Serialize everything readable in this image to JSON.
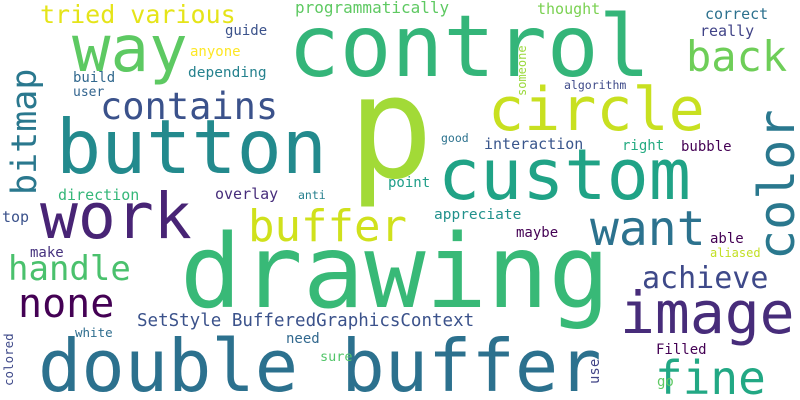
{
  "words": [
    {
      "text": "p",
      "color": "#a2da37"
    },
    {
      "text": "drawing",
      "color": "#38b977"
    },
    {
      "text": "control",
      "color": "#34b579"
    },
    {
      "text": "double buffer",
      "color": "#2c718e"
    },
    {
      "text": "custom",
      "color": "#20a386"
    },
    {
      "text": "button",
      "color": "#238a8d"
    },
    {
      "text": "work",
      "color": "#482475"
    },
    {
      "text": "way",
      "color": "#5dc962"
    },
    {
      "text": "circle",
      "color": "#c8e020"
    },
    {
      "text": "image",
      "color": "#472c7a"
    },
    {
      "text": "contains",
      "color": "#3b528b"
    },
    {
      "text": "color",
      "color": "#2a788e"
    },
    {
      "text": "buffer",
      "color": "#d0e11c"
    },
    {
      "text": "want",
      "color": "#2c728e"
    },
    {
      "text": "none",
      "color": "#440154"
    },
    {
      "text": "handle",
      "color": "#4ac16d"
    },
    {
      "text": "fine",
      "color": "#22a884"
    },
    {
      "text": "back",
      "color": "#6ece58"
    },
    {
      "text": "bitmap",
      "color": "#2a788e"
    },
    {
      "text": "achieve",
      "color": "#3e4989"
    },
    {
      "text": "tried various",
      "color": "#e5e419"
    },
    {
      "text": "SetStyle BufferedGraphicsContext",
      "color": "#3b528b"
    },
    {
      "text": "programmatically",
      "color": "#5ec962"
    },
    {
      "text": "thought",
      "color": "#7ad151"
    },
    {
      "text": "correct",
      "color": "#2c718e"
    },
    {
      "text": "really",
      "color": "#404387"
    },
    {
      "text": "guide",
      "color": "#3b528b"
    },
    {
      "text": "anyone",
      "color": "#fde725"
    },
    {
      "text": "depending",
      "color": "#26828e"
    },
    {
      "text": "build",
      "color": "#31688e"
    },
    {
      "text": "user",
      "color": "#32648e"
    },
    {
      "text": "someone",
      "color": "#9bd93c"
    },
    {
      "text": "algorithm",
      "color": "#3e4a89"
    },
    {
      "text": "good",
      "color": "#2c728e"
    },
    {
      "text": "interaction",
      "color": "#39568c"
    },
    {
      "text": "right",
      "color": "#25ab82"
    },
    {
      "text": "bubble",
      "color": "#440154"
    },
    {
      "text": "direction",
      "color": "#35b779"
    },
    {
      "text": "point",
      "color": "#1f9e89"
    },
    {
      "text": "overlay",
      "color": "#472d7b"
    },
    {
      "text": "anti",
      "color": "#27808e"
    },
    {
      "text": "top",
      "color": "#3b528b"
    },
    {
      "text": "appreciate",
      "color": "#21918c"
    },
    {
      "text": "maybe",
      "color": "#440154"
    },
    {
      "text": "make",
      "color": "#46327e"
    },
    {
      "text": "able",
      "color": "#440154"
    },
    {
      "text": "aliased",
      "color": "#c2df23"
    },
    {
      "text": "white",
      "color": "#2e6d8e"
    },
    {
      "text": "need",
      "color": "#31688e"
    },
    {
      "text": "sure",
      "color": "#52c569"
    },
    {
      "text": "colored",
      "color": "#3e4989"
    },
    {
      "text": "use",
      "color": "#414487"
    },
    {
      "text": "Filled",
      "color": "#440154"
    },
    {
      "text": "go",
      "color": "#5ec962"
    }
  ]
}
